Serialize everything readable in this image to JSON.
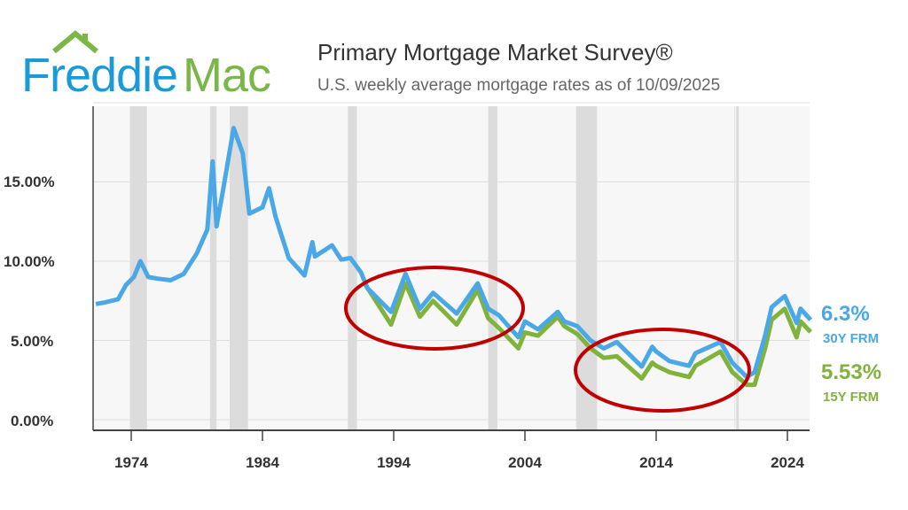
{
  "header": {
    "logo_text_1": "Freddie",
    "logo_text_2": "Mac",
    "title": "Primary Mortgage Market Survey®",
    "subtitle": "U.S. weekly average mortgage rates as of 10/09/2025"
  },
  "legend": {
    "frm30_value": "6.3%",
    "frm30_label": "30Y FRM",
    "frm15_value": "5.53%",
    "frm15_label": "15Y FRM"
  },
  "colors": {
    "frm30": "#4aa8e6",
    "frm15": "#80b33c",
    "recession": "#dcdcdc",
    "highlight_ellipse": "#c00000",
    "logo_blue": "#1a9ad6",
    "logo_green": "#7ab648"
  },
  "chart_data": {
    "type": "line",
    "title": "Primary Mortgage Market Survey®",
    "subtitle": "U.S. weekly average mortgage rates as of 10/09/2025",
    "xlim": [
      1971,
      2025.9
    ],
    "ylim": [
      0,
      20
    ],
    "x_ticks": [
      "1974",
      "1984",
      "1994",
      "2004",
      "2014",
      "2024"
    ],
    "y_ticks": [
      "0.00%",
      "5.00%",
      "10.00%",
      "15.00%"
    ],
    "grid": "horizontal",
    "legend": "right",
    "recessions": [
      [
        1973.9,
        1975.2
      ],
      [
        1980.0,
        1980.5
      ],
      [
        1981.5,
        1982.9
      ],
      [
        1990.5,
        1991.2
      ],
      [
        2001.2,
        2001.9
      ],
      [
        2007.9,
        2009.5
      ],
      [
        2020.1,
        2020.3
      ]
    ],
    "highlight_ellipses": [
      [
        1991,
        2001.5
      ],
      [
        2009.5,
        2020.5
      ]
    ],
    "series": [
      {
        "name": "30Y FRM",
        "points": [
          [
            1971.3,
            7.3
          ],
          [
            1972,
            7.4
          ],
          [
            1973,
            7.6
          ],
          [
            1973.6,
            8.5
          ],
          [
            1974.2,
            9.0
          ],
          [
            1974.7,
            10.0
          ],
          [
            1975.3,
            9.0
          ],
          [
            1976,
            8.9
          ],
          [
            1977,
            8.8
          ],
          [
            1978,
            9.2
          ],
          [
            1979,
            10.5
          ],
          [
            1979.8,
            12.0
          ],
          [
            1980.2,
            16.3
          ],
          [
            1980.5,
            12.2
          ],
          [
            1981,
            14.5
          ],
          [
            1981.8,
            18.4
          ],
          [
            1982.5,
            16.8
          ],
          [
            1983,
            13.0
          ],
          [
            1984,
            13.4
          ],
          [
            1984.5,
            14.6
          ],
          [
            1985,
            12.8
          ],
          [
            1986,
            10.2
          ],
          [
            1987.2,
            9.1
          ],
          [
            1987.8,
            11.2
          ],
          [
            1988,
            10.3
          ],
          [
            1989.3,
            11.0
          ],
          [
            1990,
            10.1
          ],
          [
            1990.7,
            10.2
          ],
          [
            1991.5,
            9.3
          ],
          [
            1992,
            8.3
          ],
          [
            1993.8,
            6.8
          ],
          [
            1994.9,
            9.2
          ],
          [
            1996,
            7.0
          ],
          [
            1997,
            8.0
          ],
          [
            1998.8,
            6.7
          ],
          [
            2000.4,
            8.6
          ],
          [
            2001.2,
            7.0
          ],
          [
            2002,
            6.6
          ],
          [
            2003.5,
            5.2
          ],
          [
            2004,
            6.2
          ],
          [
            2005,
            5.7
          ],
          [
            2006.5,
            6.8
          ],
          [
            2007,
            6.2
          ],
          [
            2008,
            5.9
          ],
          [
            2009,
            5.0
          ],
          [
            2010,
            4.5
          ],
          [
            2011,
            4.9
          ],
          [
            2012.9,
            3.35
          ],
          [
            2013.7,
            4.6
          ],
          [
            2014,
            4.3
          ],
          [
            2015,
            3.7
          ],
          [
            2016.5,
            3.4
          ],
          [
            2017,
            4.2
          ],
          [
            2018.9,
            4.9
          ],
          [
            2019.8,
            3.6
          ],
          [
            2020.9,
            2.7
          ],
          [
            2021.5,
            3.0
          ],
          [
            2022.3,
            5.3
          ],
          [
            2022.8,
            7.1
          ],
          [
            2023.8,
            7.8
          ],
          [
            2024.7,
            6.1
          ],
          [
            2025,
            7.0
          ],
          [
            2025.77,
            6.3
          ]
        ]
      },
      {
        "name": "15Y FRM",
        "points": [
          [
            1991.7,
            8.7
          ],
          [
            1993.8,
            6.0
          ],
          [
            1994.9,
            8.6
          ],
          [
            1996,
            6.5
          ],
          [
            1997,
            7.5
          ],
          [
            1998.8,
            6.0
          ],
          [
            2000.4,
            8.2
          ],
          [
            2001.2,
            6.4
          ],
          [
            2002,
            5.8
          ],
          [
            2003.5,
            4.5
          ],
          [
            2004,
            5.5
          ],
          [
            2005,
            5.3
          ],
          [
            2006.5,
            6.5
          ],
          [
            2007,
            5.9
          ],
          [
            2008,
            5.4
          ],
          [
            2009,
            4.5
          ],
          [
            2010,
            3.9
          ],
          [
            2011,
            4.0
          ],
          [
            2012.9,
            2.6
          ],
          [
            2013.7,
            3.6
          ],
          [
            2014,
            3.4
          ],
          [
            2015,
            3.0
          ],
          [
            2016.5,
            2.7
          ],
          [
            2017,
            3.4
          ],
          [
            2018.9,
            4.3
          ],
          [
            2019.8,
            3.0
          ],
          [
            2020.9,
            2.2
          ],
          [
            2021.5,
            2.2
          ],
          [
            2022.3,
            4.5
          ],
          [
            2022.8,
            6.3
          ],
          [
            2023.8,
            7.0
          ],
          [
            2024.7,
            5.2
          ],
          [
            2025,
            6.2
          ],
          [
            2025.77,
            5.53
          ]
        ]
      }
    ]
  }
}
